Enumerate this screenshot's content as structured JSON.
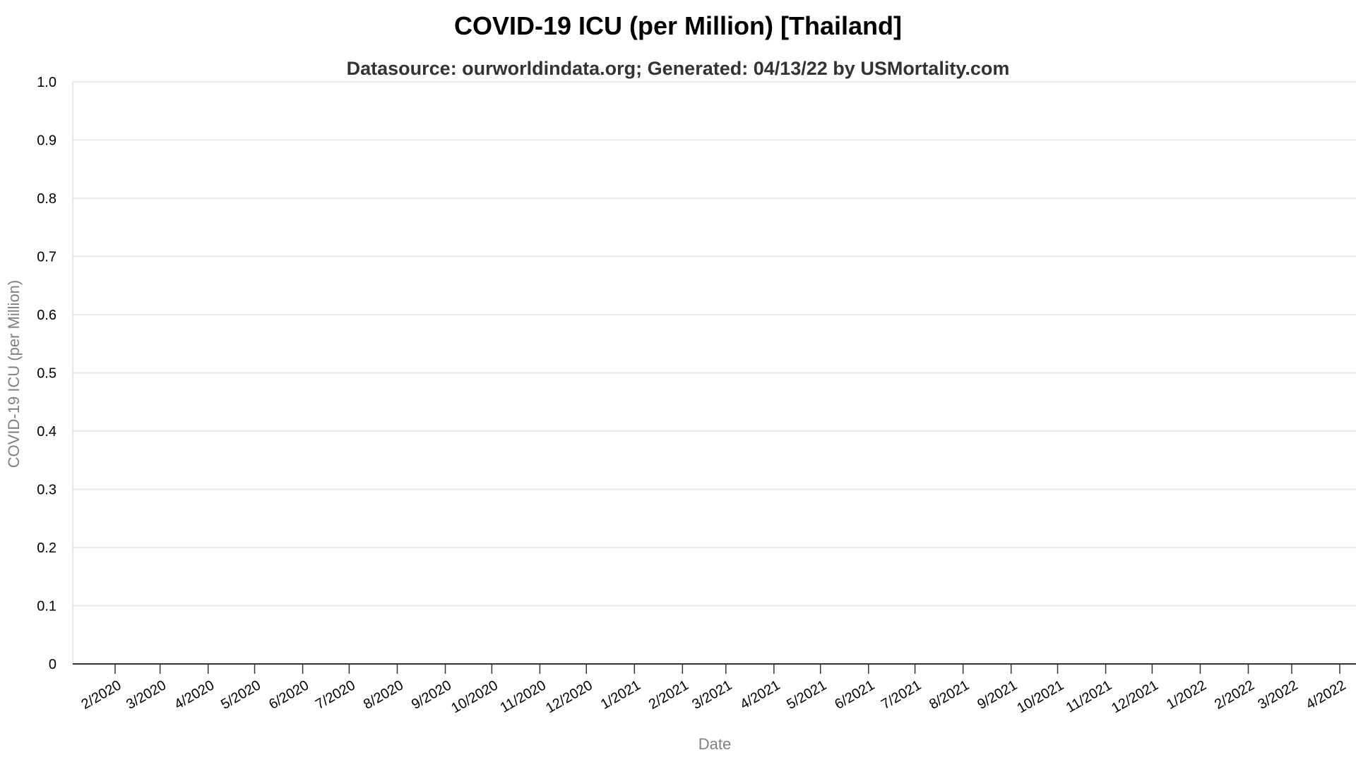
{
  "chart_data": {
    "type": "line",
    "title": "COVID-19 ICU (per Million) [Thailand]",
    "subtitle": "Datasource: ourworldindata.org; Generated: 04/13/22 by USMortality.com",
    "xlabel": "Date",
    "ylabel": "COVID-19 ICU (per Million)",
    "ylim": [
      0,
      1.0
    ],
    "y_ticks": [
      "0",
      "0.1",
      "0.2",
      "0.3",
      "0.4",
      "0.5",
      "0.6",
      "0.7",
      "0.8",
      "0.9",
      "1.0"
    ],
    "x_ticks": [
      "2/2020",
      "3/2020",
      "4/2020",
      "5/2020",
      "6/2020",
      "7/2020",
      "8/2020",
      "9/2020",
      "10/2020",
      "11/2020",
      "12/2020",
      "1/2021",
      "2/2021",
      "3/2021",
      "4/2021",
      "5/2021",
      "6/2021",
      "7/2021",
      "8/2021",
      "9/2021",
      "10/2021",
      "11/2021",
      "12/2021",
      "1/2022",
      "2/2022",
      "3/2022",
      "4/2022"
    ],
    "grid": true,
    "series": []
  }
}
